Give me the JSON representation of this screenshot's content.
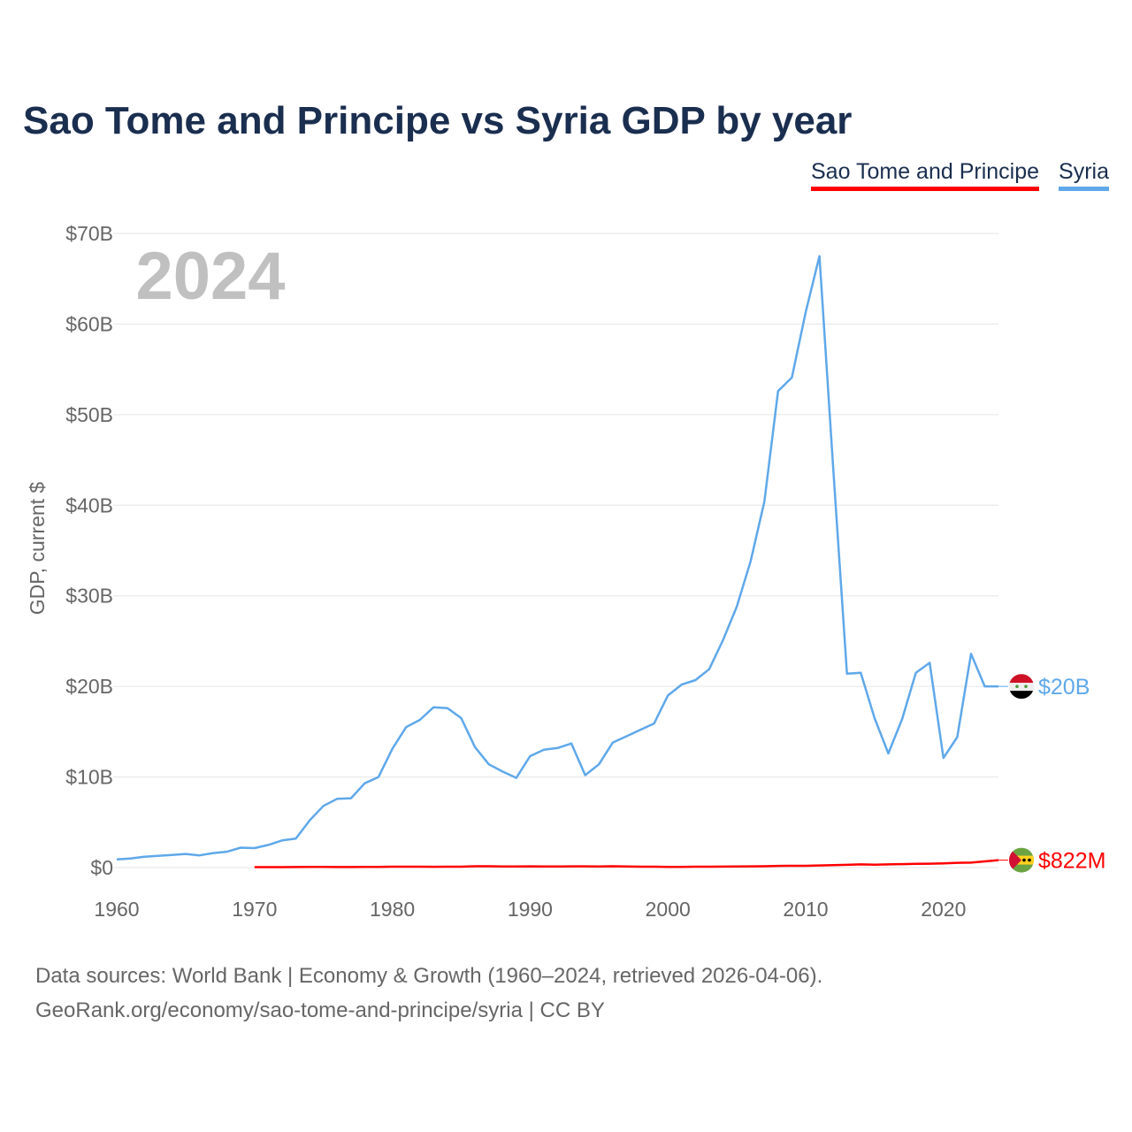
{
  "title": "Sao Tome and Principe vs Syria GDP by year",
  "legend": [
    {
      "label": "Sao Tome and Principe",
      "color": "#ff0000"
    },
    {
      "label": "Syria",
      "color": "#5fa8ea"
    }
  ],
  "year_watermark": "2024",
  "source_line1": "Data sources: World Bank | Economy & Growth (1960–2024, retrieved 2026-04-06).",
  "source_line2": "GeoRank.org/economy/sao-tome-and-principe/syria | CC BY",
  "chart_data": {
    "type": "line",
    "title": "Sao Tome and Principe vs Syria GDP by year",
    "xlabel": "",
    "ylabel": "GDP, current $",
    "xlim": [
      1960,
      2024
    ],
    "ylim": [
      0,
      70
    ],
    "y_unit": "billion USD",
    "grid": true,
    "legend_position": "top-right",
    "x_ticks": [
      "1960",
      "1970",
      "1980",
      "1990",
      "2000",
      "2010",
      "2020"
    ],
    "x_tick_values": [
      1960,
      1970,
      1980,
      1990,
      2000,
      2010,
      2020
    ],
    "y_ticks": [
      "$0",
      "$10B",
      "$20B",
      "$30B",
      "$40B",
      "$50B",
      "$60B",
      "$70B"
    ],
    "y_tick_values": [
      0,
      10,
      20,
      30,
      40,
      50,
      60,
      70
    ],
    "series": [
      {
        "name": "Syria",
        "color": "#5fa8ea",
        "end_label": "$20B",
        "start_year": 1960,
        "values": [
          0.9,
          1.0,
          1.2,
          1.3,
          1.4,
          1.5,
          1.35,
          1.6,
          1.75,
          2.2,
          2.15,
          2.5,
          3.0,
          3.2,
          5.2,
          6.8,
          7.6,
          7.65,
          9.3,
          10.0,
          13.1,
          15.5,
          16.3,
          17.7,
          17.6,
          16.5,
          13.3,
          11.4,
          10.6,
          9.9,
          12.3,
          13.0,
          13.2,
          13.7,
          10.2,
          11.4,
          13.8,
          14.5,
          15.2,
          15.9,
          19.0,
          20.2,
          20.7,
          21.9,
          25.1,
          28.8,
          33.8,
          40.4,
          52.6,
          54.1,
          61.3,
          67.5,
          44.0,
          21.4,
          21.5,
          16.5,
          12.6,
          16.4,
          21.5,
          22.6,
          12.1,
          14.4,
          23.6,
          20.0,
          20.0
        ]
      },
      {
        "name": "Sao Tome and Principe",
        "color": "#ff0000",
        "end_label": "$822M",
        "start_year": 1970,
        "values": [
          0.05,
          0.05,
          0.05,
          0.06,
          0.07,
          0.07,
          0.06,
          0.06,
          0.07,
          0.08,
          0.1,
          0.1,
          0.1,
          0.09,
          0.1,
          0.1,
          0.15,
          0.15,
          0.13,
          0.12,
          0.14,
          0.12,
          0.12,
          0.14,
          0.14,
          0.12,
          0.15,
          0.12,
          0.1,
          0.1,
          0.08,
          0.08,
          0.1,
          0.1,
          0.11,
          0.13,
          0.14,
          0.15,
          0.19,
          0.2,
          0.2,
          0.23,
          0.26,
          0.3,
          0.35,
          0.32,
          0.35,
          0.38,
          0.41,
          0.43,
          0.47,
          0.53,
          0.55,
          0.68,
          0.822
        ]
      }
    ]
  }
}
